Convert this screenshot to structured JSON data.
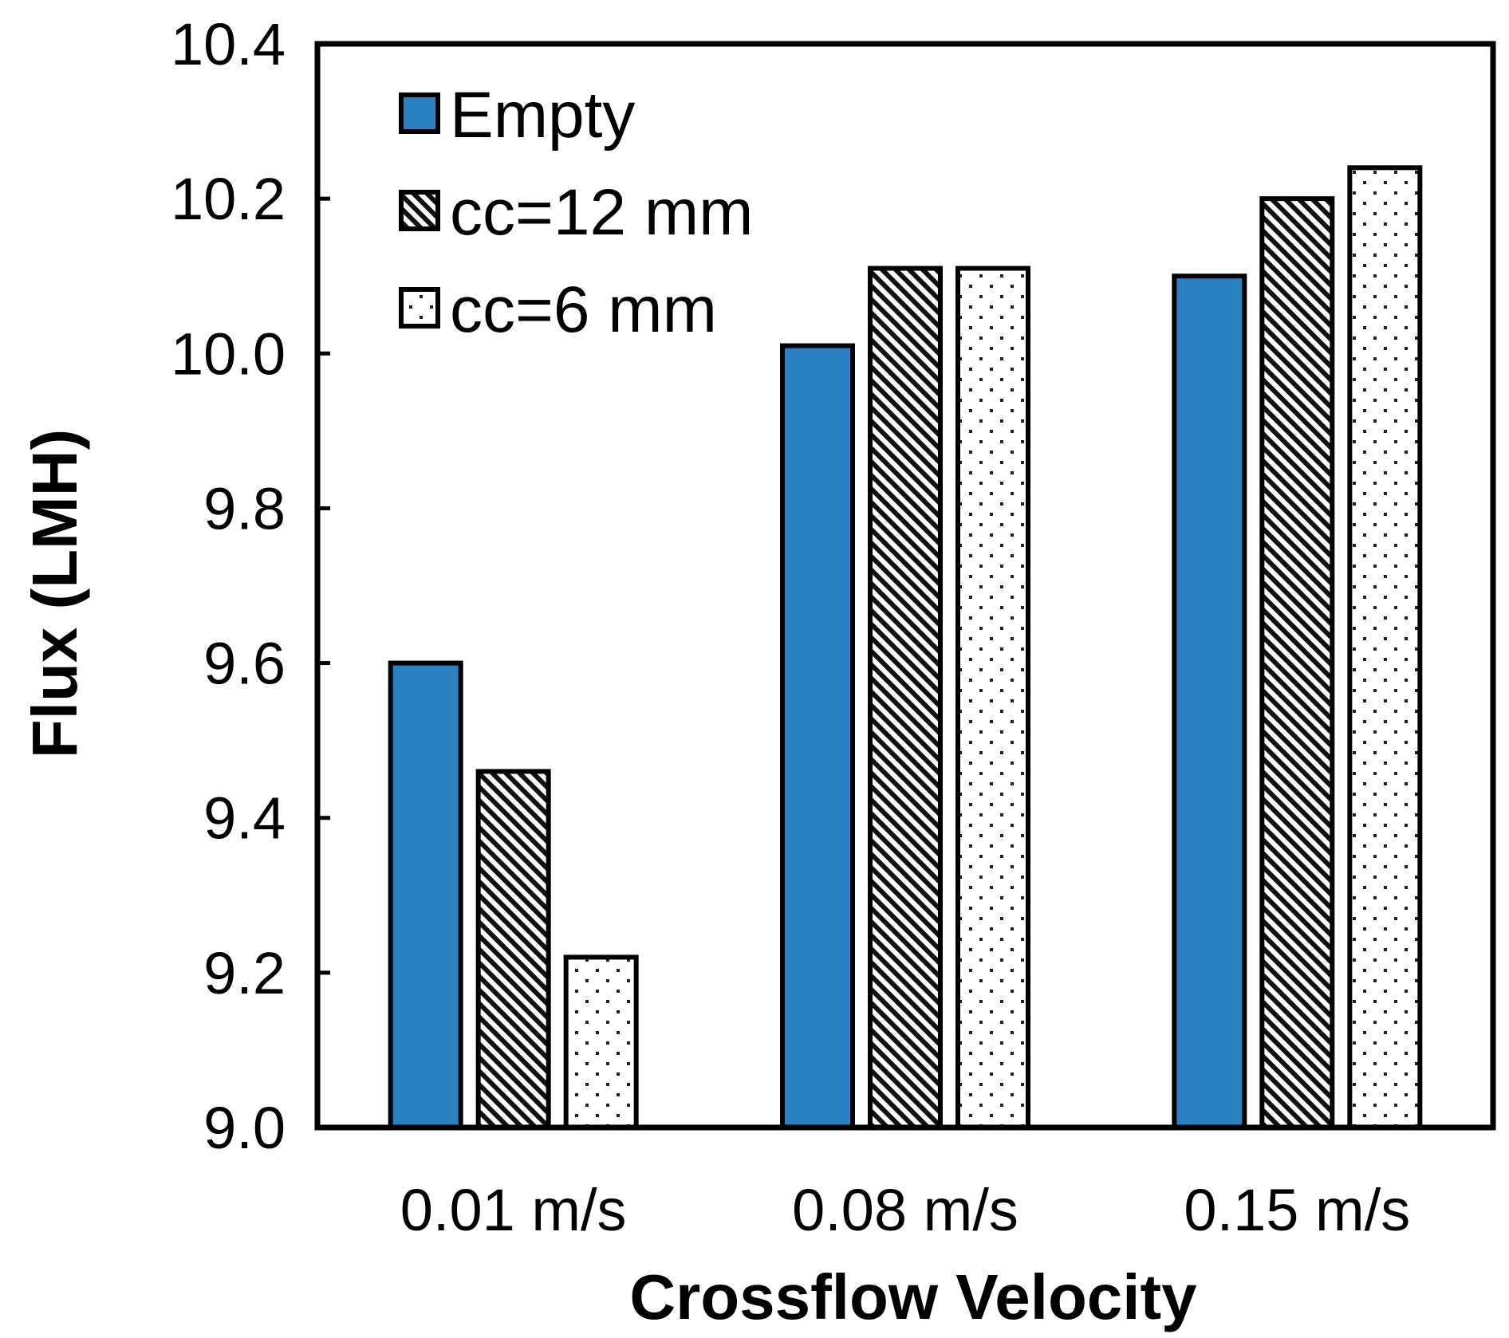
{
  "chart_data": {
    "type": "bar",
    "title": "",
    "xlabel": "Crossflow Velocity",
    "ylabel": "Flux (LMH)",
    "categories": [
      "0.01 m/s",
      "0.08 m/s",
      "0.15 m/s"
    ],
    "ylim": [
      9.0,
      10.4
    ],
    "yticks": [
      "9.0",
      "9.2",
      "9.4",
      "9.6",
      "9.8",
      "10.0",
      "10.2",
      "10.4"
    ],
    "legend_position": "top-left",
    "grid": false,
    "series": [
      {
        "name": "Empty",
        "values": [
          9.6,
          10.01,
          10.1
        ],
        "color": "#2a80c0",
        "pattern": "solid"
      },
      {
        "name": "cc=12 mm",
        "values": [
          9.46,
          10.11,
          10.2
        ],
        "color": "#000000",
        "pattern": "diagonal-hatch"
      },
      {
        "name": "cc=6 mm",
        "values": [
          9.22,
          10.11,
          10.24
        ],
        "color": "#000000",
        "pattern": "dots"
      }
    ]
  }
}
